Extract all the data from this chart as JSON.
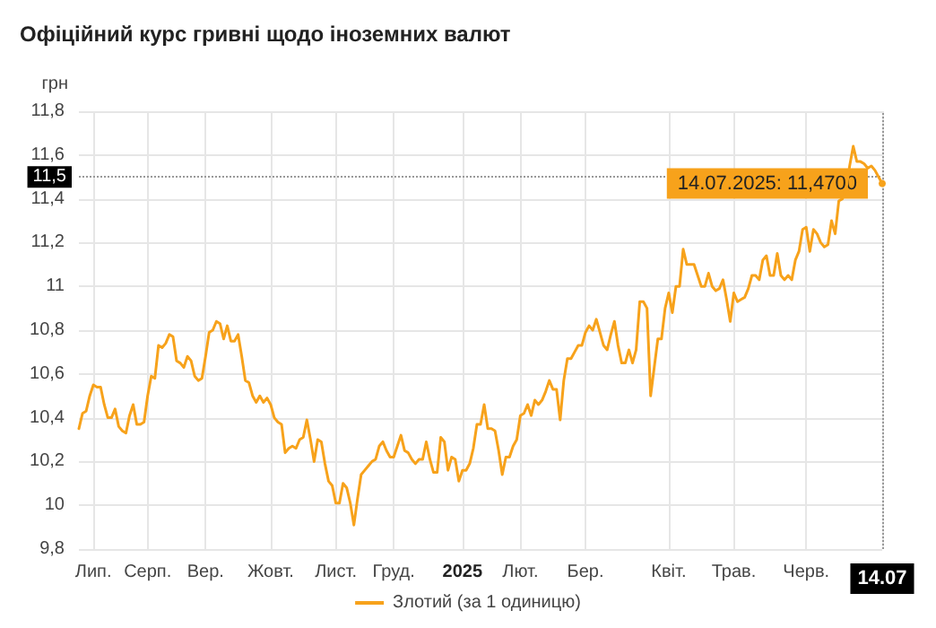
{
  "chart_data": {
    "type": "line",
    "title": "Офіційний курс гривні щодо іноземних валют",
    "ylabel": "грн",
    "categories": [
      null,
      null,
      null,
      null,
      "Лип.",
      null,
      null,
      null,
      null,
      null,
      null,
      null,
      null,
      null,
      null,
      null,
      null,
      null,
      null,
      "Серп.",
      null,
      null,
      null,
      null,
      null,
      null,
      null,
      null,
      null,
      null,
      null,
      null,
      null,
      null,
      null,
      "Вер.",
      null,
      null,
      null,
      null,
      null,
      null,
      null,
      null,
      null,
      null,
      null,
      null,
      null,
      null,
      null,
      null,
      null,
      "Жовт.",
      null,
      null,
      null,
      null,
      null,
      null,
      null,
      null,
      null,
      null,
      null,
      null,
      null,
      null,
      null,
      null,
      null,
      "Лист.",
      null,
      null,
      null,
      null,
      null,
      null,
      null,
      null,
      null,
      null,
      null,
      null,
      null,
      null,
      null,
      "Груд.",
      null,
      null,
      null,
      null,
      null,
      null,
      null,
      null,
      null,
      null,
      null,
      null,
      null,
      null,
      null,
      null,
      null,
      null,
      "2025",
      null,
      null,
      null,
      null,
      null,
      null,
      null,
      null,
      null,
      null,
      null,
      null,
      null,
      null,
      null,
      "Лют.",
      null,
      null,
      null,
      null,
      null,
      null,
      null,
      null,
      null,
      null,
      null,
      null,
      null,
      null,
      null,
      null,
      null,
      "Бер.",
      null,
      null,
      null,
      null,
      null,
      null,
      null,
      null,
      null,
      null,
      null,
      null,
      null,
      null,
      null,
      null,
      null,
      null,
      null,
      null,
      null,
      null,
      "Квіт.",
      null,
      null,
      null,
      null,
      null,
      null,
      null,
      null,
      null,
      null,
      null,
      null,
      null,
      null,
      null,
      null,
      null,
      "Трав.",
      null,
      null,
      null,
      null,
      null,
      null,
      null,
      null,
      null,
      null,
      null,
      null,
      null,
      null,
      null,
      null,
      null,
      null,
      null,
      "Черв.",
      null,
      null,
      null,
      null,
      null,
      null,
      null,
      null,
      null,
      null,
      null,
      null,
      null,
      null,
      null,
      null,
      null,
      null,
      null,
      null,
      "14.07"
    ],
    "ylim": [
      9.8,
      11.8
    ],
    "yticks": [
      {
        "value": 9.8,
        "label": "9,8"
      },
      10,
      {
        "value": 10.2,
        "label": "10,2"
      },
      {
        "value": 10.4,
        "label": "10,4"
      },
      {
        "value": 10.6,
        "label": "10,6"
      },
      {
        "value": 10.8,
        "label": "10,8"
      },
      11,
      {
        "value": 11.2,
        "label": "11,2"
      },
      {
        "value": 11.4,
        "label": "11,4"
      },
      {
        "value": 11.6,
        "label": "11,6"
      },
      {
        "value": 11.8,
        "label": "11,8"
      }
    ],
    "grid": true,
    "legend": "bottom",
    "ref_lines": [
      {
        "axis": "y",
        "value": 11.5,
        "label": "11,5",
        "color": "#999999",
        "line_style": "dotted"
      },
      {
        "axis": "x",
        "value": "14.07",
        "color": "#999999",
        "line_style": "dotted"
      }
    ],
    "annotations": [
      {
        "text": "14.07.2025: 11,4700",
        "x": "14.07",
        "y": 11.47
      }
    ],
    "series": [
      {
        "name": "Злотий (за 1 одиницю)",
        "color": "#f7a21b",
        "values": [
          10.35,
          10.42,
          10.43,
          10.5,
          10.55,
          10.54,
          10.54,
          10.46,
          10.4,
          10.4,
          10.44,
          10.36,
          10.34,
          10.33,
          10.41,
          10.46,
          10.37,
          10.37,
          10.38,
          10.5,
          10.59,
          10.58,
          10.73,
          10.72,
          10.74,
          10.78,
          10.77,
          10.66,
          10.65,
          10.63,
          10.68,
          10.66,
          10.59,
          10.57,
          10.58,
          10.68,
          10.79,
          10.8,
          10.84,
          10.83,
          10.76,
          10.82,
          10.75,
          10.75,
          10.78,
          10.68,
          10.57,
          10.56,
          10.5,
          10.47,
          10.5,
          10.47,
          10.49,
          10.46,
          10.4,
          10.38,
          10.37,
          10.24,
          10.26,
          10.27,
          10.26,
          10.3,
          10.31,
          10.39,
          10.3,
          10.2,
          10.3,
          10.29,
          10.19,
          10.11,
          10.09,
          10.01,
          10.01,
          10.1,
          10.08,
          10.01,
          9.91,
          10.03,
          10.14,
          10.16,
          10.18,
          10.2,
          10.21,
          10.27,
          10.29,
          10.25,
          10.22,
          10.22,
          10.27,
          10.32,
          10.25,
          10.24,
          10.21,
          10.19,
          10.21,
          10.21,
          10.29,
          10.21,
          10.15,
          10.15,
          10.31,
          10.29,
          10.16,
          10.22,
          10.21,
          10.11,
          10.16,
          10.16,
          10.19,
          10.26,
          10.37,
          10.37,
          10.46,
          10.35,
          10.35,
          10.34,
          10.25,
          10.14,
          10.22,
          10.22,
          10.27,
          10.3,
          10.41,
          10.42,
          10.46,
          10.41,
          10.48,
          10.46,
          10.48,
          10.52,
          10.57,
          10.53,
          10.53,
          10.39,
          10.57,
          10.67,
          10.67,
          10.7,
          10.73,
          10.73,
          10.79,
          10.82,
          10.8,
          10.85,
          10.79,
          10.73,
          10.71,
          10.78,
          10.84,
          10.73,
          10.65,
          10.65,
          10.71,
          10.65,
          10.71,
          10.93,
          10.93,
          10.9,
          10.5,
          10.63,
          10.76,
          10.76,
          10.9,
          10.97,
          10.88,
          11.0,
          11.0,
          11.17,
          11.1,
          11.1,
          11.1,
          11.05,
          11.0,
          11.0,
          11.06,
          11.0,
          10.98,
          10.99,
          11.03,
          10.94,
          10.84,
          10.97,
          10.93,
          10.94,
          10.95,
          10.99,
          11.05,
          11.05,
          11.03,
          11.12,
          11.14,
          11.05,
          11.05,
          11.15,
          11.05,
          11.03,
          11.05,
          11.03,
          11.12,
          11.16,
          11.26,
          11.27,
          11.16,
          11.26,
          11.24,
          11.2,
          11.18,
          11.19,
          11.3,
          11.24,
          11.39,
          11.4,
          11.44,
          11.55,
          11.64,
          11.57,
          11.57,
          11.56,
          11.54,
          11.55,
          11.53,
          11.5,
          11.47
        ]
      }
    ]
  }
}
